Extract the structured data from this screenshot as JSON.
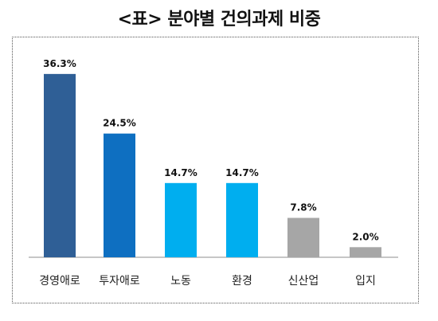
{
  "title": "<표> 분야별 건의과제 비중",
  "chart_data": {
    "type": "bar",
    "title": "<표> 분야별 건의과제 비중",
    "categories": [
      "경영애로",
      "투자애로",
      "노동",
      "환경",
      "신산업",
      "입지"
    ],
    "values": [
      36.3,
      24.5,
      14.7,
      14.7,
      7.8,
      2.0
    ],
    "value_labels": [
      "36.3%",
      "24.5%",
      "14.7%",
      "14.7%",
      "7.8%",
      "2.0%"
    ],
    "colors": [
      "#2F5F96",
      "#0E6FC1",
      "#00AEEF",
      "#00AEEF",
      "#A6A6A6",
      "#A6A6A6"
    ],
    "ylim": [
      0,
      40
    ],
    "grid": false,
    "legend": "none"
  }
}
